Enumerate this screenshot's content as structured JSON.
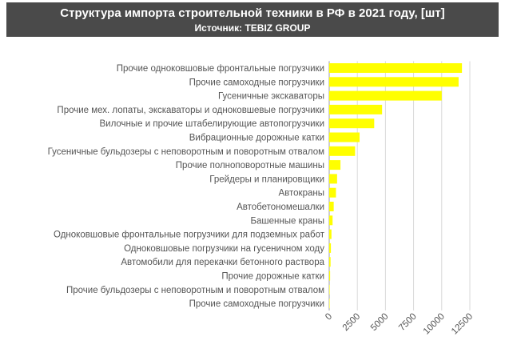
{
  "header": {
    "title": "Структура импорта строительной техники в РФ в 2021 году, [шт]",
    "subtitle": "Источник: TEBIZ GROUP"
  },
  "colors": {
    "bar": "#ffff00",
    "header_bg": "#4a4a4a",
    "grid": "#d9d9d9",
    "text": "#555555"
  },
  "chart_data": {
    "type": "bar",
    "orientation": "horizontal",
    "title": "Структура импорта строительной техники в РФ в 2021 году, [шт]",
    "subtitle": "Источник: TEBIZ GROUP",
    "xlabel": "",
    "ylabel": "",
    "xlim": [
      0,
      12500
    ],
    "x_ticks": [
      0,
      2500,
      5000,
      7500,
      10000,
      12500
    ],
    "grid": true,
    "categories": [
      "Прочие одноковшовые фронтальные погрузчики",
      "Прочие самоходные погрузчики",
      "Гусеничные экскаваторы",
      "Прочие мех. лопаты, экскаваторы и одноковшевые погрузчики",
      "Вилочные и прочие штабелирующие автопогрузчики",
      "Вибрационные дорожные катки",
      "Гусеничные бульдозеры с неповоротным и поворотным отвалом",
      "Прочие полноповоротные машины",
      "Грейдеры и планировщики",
      "Автокраны",
      "Автобетономешалки",
      "Башенные краны",
      "Одноковшовые фронтальные погрузчики для подземных работ",
      "Одноковшовые погрузчики на гусеничном ходу",
      "Автомобили для перекачки бетонного раствора",
      "Прочие дорожные катки",
      "Прочие бульдозеры с неповоротным и поворотным отвалом",
      "Прочие самоходные погрузчики"
    ],
    "values": [
      11800,
      11500,
      10000,
      4700,
      4000,
      2700,
      2300,
      1000,
      700,
      600,
      400,
      300,
      200,
      150,
      120,
      80,
      40,
      20
    ]
  }
}
